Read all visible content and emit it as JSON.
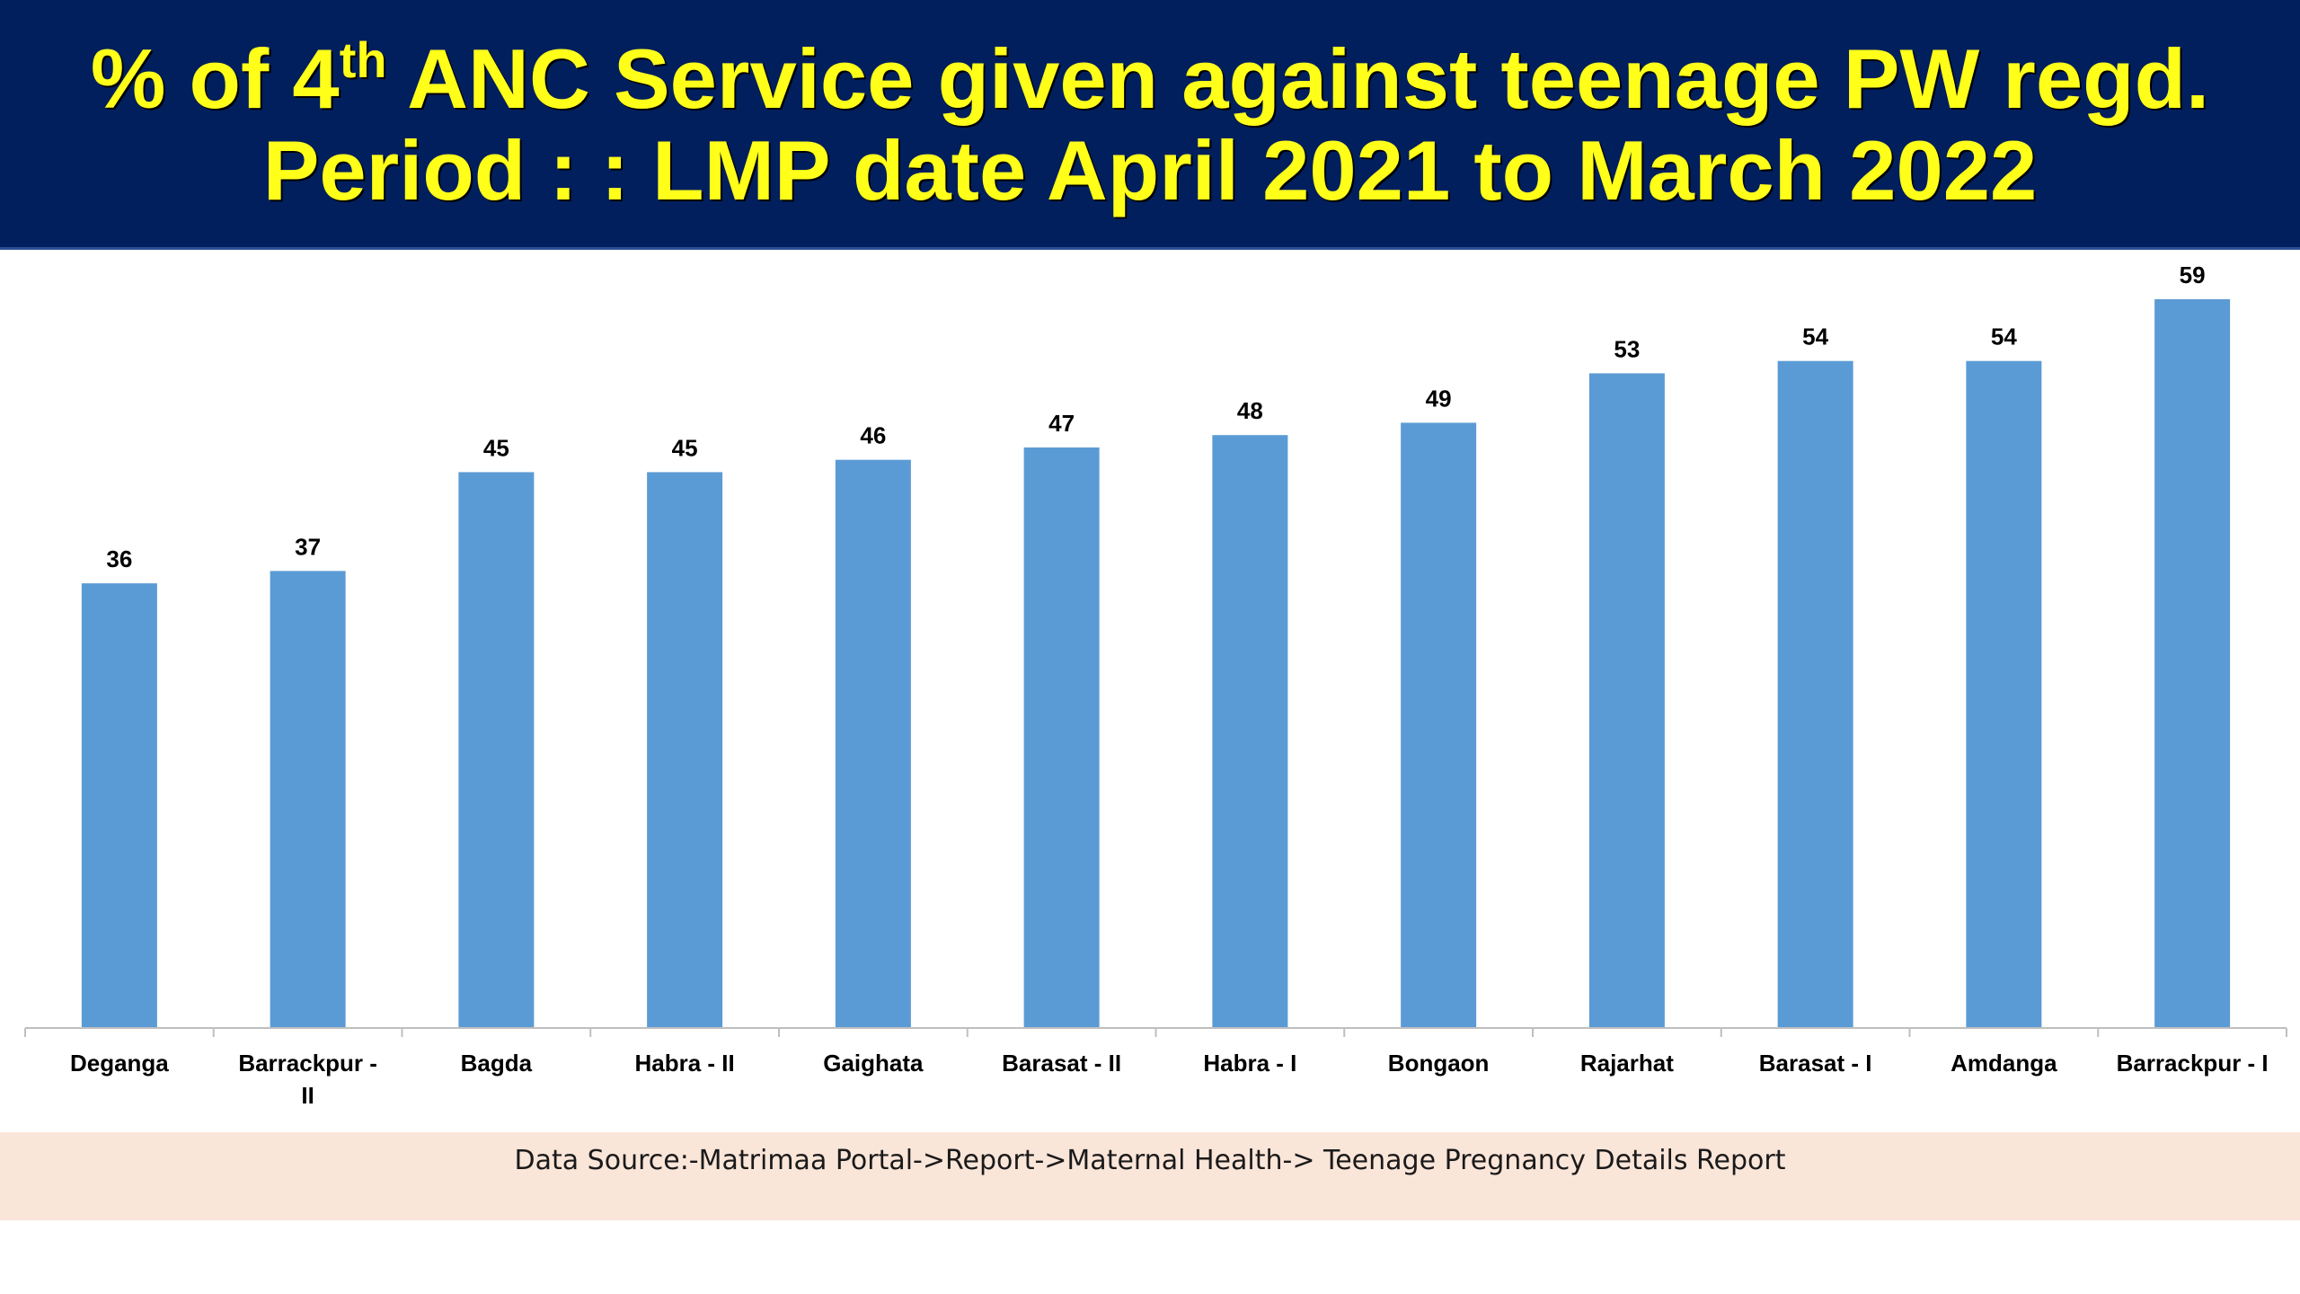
{
  "title": {
    "line1_prefix": "% of 4",
    "line1_sup": "th",
    "line1_suffix": " ANC Service given against teenage PW regd.",
    "line2": "Period : : LMP date April 2021 to March 2022"
  },
  "colors": {
    "banner": "#011f5c",
    "title_text": "#ffff1a",
    "bar": "#5b9bd5",
    "source_band": "#fae5d9"
  },
  "chart_data": {
    "type": "bar",
    "title": "% of 4th ANC Service given against teenage PW regd.",
    "subtitle": "Period : : LMP date April 2021 to March 2022",
    "categories": [
      "Deganga",
      "Barrackpur - II",
      "Bagda",
      "Habra - II",
      "Gaighata",
      "Barasat - II",
      "Habra - I",
      "Bongaon",
      "Rajarhat",
      "Barasat - I",
      "Amdanga",
      "Barrackpur - I"
    ],
    "category_lines": [
      [
        "Deganga"
      ],
      [
        "Barrackpur -",
        "II"
      ],
      [
        "Bagda"
      ],
      [
        "Habra - II"
      ],
      [
        "Gaighata"
      ],
      [
        "Barasat - II"
      ],
      [
        "Habra - I"
      ],
      [
        "Bongaon"
      ],
      [
        "Rajarhat"
      ],
      [
        "Barasat - I"
      ],
      [
        "Amdanga"
      ],
      [
        "Barrackpur - I"
      ]
    ],
    "values": [
      36,
      37,
      45,
      45,
      46,
      47,
      48,
      49,
      53,
      54,
      54,
      59
    ],
    "value_labels": [
      "36",
      "37",
      "45",
      "45",
      "46",
      "47",
      "48",
      "49",
      "53",
      "54",
      "54",
      "59"
    ],
    "ylim": [
      0,
      63
    ],
    "grid": false,
    "legend": "none",
    "data_labels": true
  },
  "footer": {
    "source": "Data Source:-Matrimaa Portal->Report->Maternal Health-> Teenage Pregnancy Details Report"
  }
}
